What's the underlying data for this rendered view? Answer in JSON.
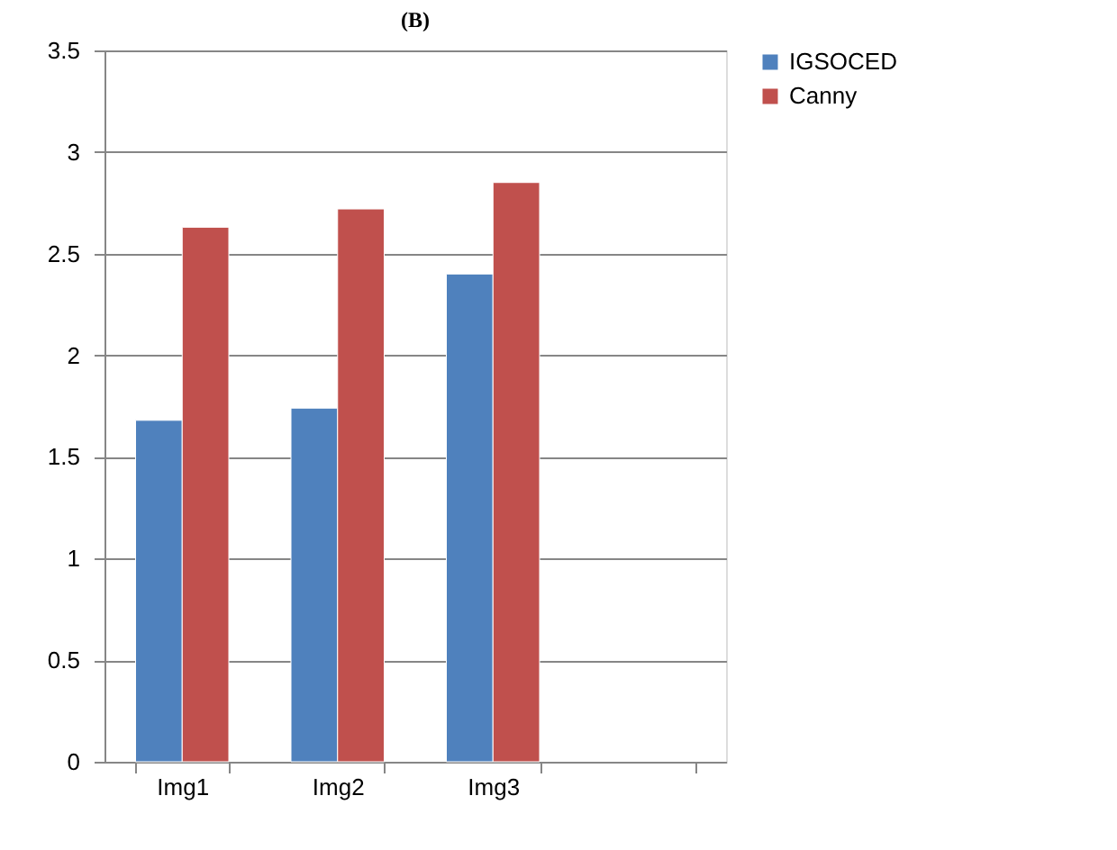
{
  "chart_data": {
    "type": "bar",
    "title": "(B)",
    "categories": [
      "Img1",
      "Img2",
      "Img3",
      null
    ],
    "series": [
      {
        "name": "IGSOCED",
        "color": "#4f81bd",
        "values": [
          1.68,
          1.74,
          2.4,
          null
        ]
      },
      {
        "name": "Canny",
        "color": "#c0504d",
        "values": [
          2.63,
          2.72,
          2.85,
          null
        ]
      }
    ],
    "ylim": [
      0,
      3.5
    ],
    "yticks": [
      0,
      0.5,
      1,
      1.5,
      2,
      2.5,
      3,
      3.5
    ],
    "grid": "y",
    "legend": "right"
  }
}
